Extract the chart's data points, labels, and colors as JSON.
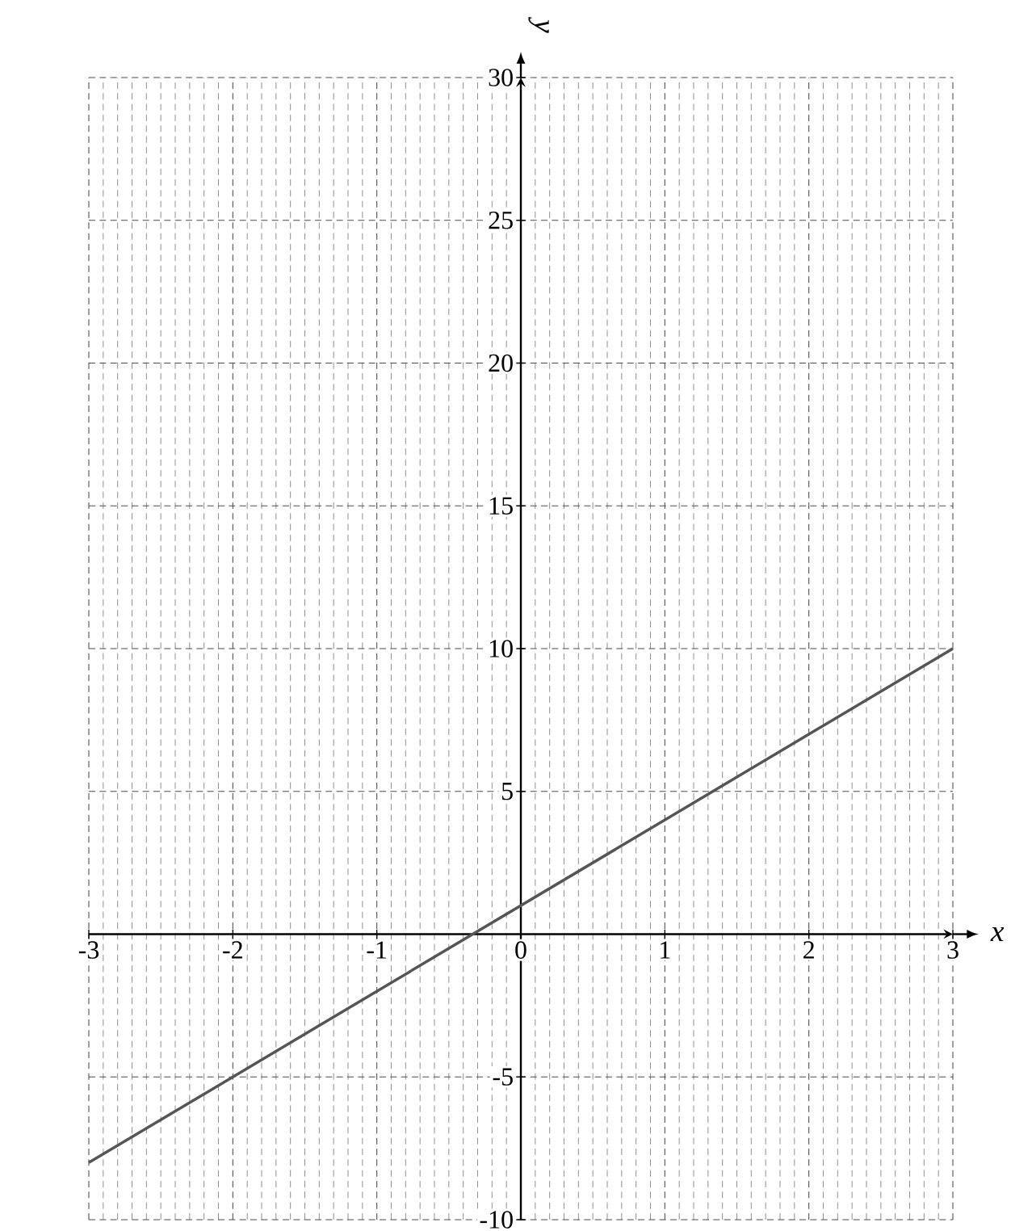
{
  "chart_data": {
    "type": "line",
    "xlabel": "x",
    "ylabel": "y",
    "x": [
      -3,
      3
    ],
    "series": [
      {
        "color": "#555555",
        "values": [
          -8,
          10
        ]
      }
    ],
    "xlim": [
      -3,
      3
    ],
    "ylim": [
      -10,
      30
    ],
    "xticks": [
      -3,
      -2,
      -1,
      0,
      1,
      2,
      3
    ],
    "yticks": [
      -10,
      -5,
      5,
      10,
      15,
      20,
      25,
      30
    ],
    "grid": true,
    "marker": "none",
    "line_style": "solid"
  }
}
